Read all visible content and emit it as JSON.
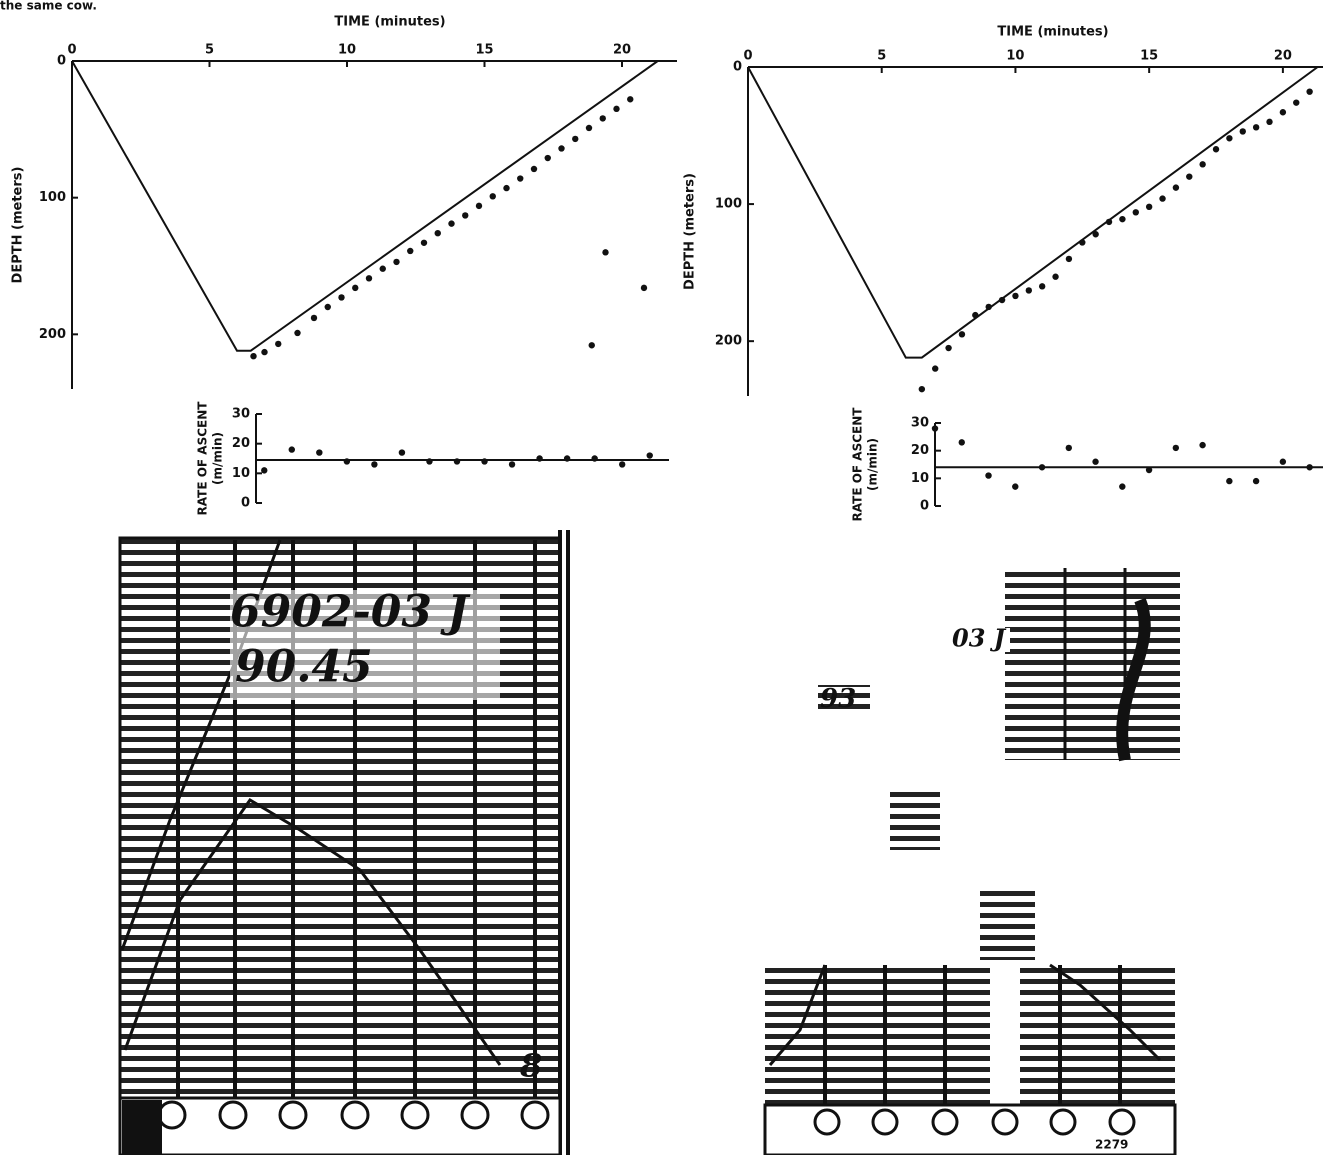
{
  "page_fragment": "the same cow.",
  "chart_data": [
    {
      "type": "scatter",
      "x_label": "TIME (minutes)",
      "y_label": "DEPTH (meters)",
      "xlim": [
        0,
        22
      ],
      "ylim": [
        240,
        0
      ],
      "xticks": [
        0,
        5,
        10,
        15,
        20
      ],
      "yticks": [
        0,
        100,
        200
      ],
      "line": {
        "x": [
          0,
          6,
          6.5,
          21.3
        ],
        "y": [
          0,
          212,
          212,
          0
        ]
      },
      "points": {
        "x": [
          6.6,
          7.0,
          7.5,
          8.2,
          8.8,
          9.3,
          9.8,
          10.3,
          10.8,
          11.3,
          11.8,
          12.3,
          12.8,
          13.3,
          13.8,
          14.3,
          14.8,
          15.3,
          15.8,
          16.3,
          16.8,
          17.3,
          17.8,
          18.3,
          18.8,
          19.3,
          19.8,
          20.3,
          19.4,
          20.8,
          18.9
        ],
        "y": [
          216,
          213,
          207,
          199,
          188,
          180,
          173,
          166,
          159,
          152,
          147,
          139,
          133,
          126,
          119,
          113,
          106,
          99,
          93,
          86,
          79,
          71,
          64,
          57,
          49,
          42,
          35,
          28,
          140,
          166,
          208
        ]
      }
    },
    {
      "type": "rate",
      "y_label": [
        "RATE OF ASCENT",
        "(m/min)"
      ],
      "xlim": [
        6.7,
        21.7
      ],
      "ylim": [
        0,
        30
      ],
      "yticks": [
        0,
        10,
        20,
        30
      ],
      "reference_y": 14.5,
      "points": {
        "x": [
          7,
          8,
          9,
          10,
          11,
          12,
          13,
          14,
          15,
          16,
          17,
          18,
          19,
          20,
          21
        ],
        "y": [
          11,
          18,
          17,
          14,
          13,
          17,
          14,
          14,
          14,
          13,
          15,
          15,
          15,
          13,
          16
        ]
      }
    },
    {
      "type": "scatter",
      "x_label": "TIME (minutes)",
      "y_label": "DEPTH (meters)",
      "xlim": [
        0,
        21.5
      ],
      "ylim": [
        240,
        0
      ],
      "xticks": [
        0,
        5,
        10,
        15,
        20
      ],
      "yticks": [
        0,
        100,
        200
      ],
      "line": {
        "x": [
          0,
          5.9,
          6.5,
          21.3
        ],
        "y": [
          0,
          212,
          212,
          0
        ]
      },
      "points": {
        "x": [
          6.5,
          7,
          7.5,
          8,
          8.5,
          9,
          9.5,
          10,
          10.5,
          11,
          11.5,
          12,
          12.5,
          13,
          13.5,
          14,
          14.5,
          15,
          15.5,
          16,
          16.5,
          17,
          17.5,
          18,
          18.5,
          19,
          19.5,
          20,
          20.5,
          21
        ],
        "y": [
          235,
          220,
          205,
          195,
          181,
          175,
          170,
          167,
          163,
          160,
          153,
          140,
          128,
          122,
          113,
          111,
          106,
          102,
          96,
          88,
          80,
          71,
          60,
          52,
          47,
          44,
          40,
          33,
          26,
          18
        ]
      }
    },
    {
      "type": "rate",
      "y_label": [
        "RATE OF ASCENT",
        "(m/min)"
      ],
      "xlim": [
        7,
        21.5
      ],
      "ylim": [
        0,
        30
      ],
      "yticks": [
        0,
        10,
        20,
        30
      ],
      "reference_y": 14,
      "points": {
        "x": [
          7,
          8,
          9,
          10,
          11,
          12,
          13,
          14,
          15,
          16,
          17,
          18,
          19,
          20,
          21
        ],
        "y": [
          28,
          23,
          11,
          7,
          14,
          21,
          16,
          7,
          13,
          21,
          22,
          9,
          9,
          16,
          14
        ]
      }
    }
  ],
  "records": {
    "left": [
      "6902-03 J",
      "90.45",
      "8"
    ],
    "right": [
      "03 J",
      "93",
      "2279"
    ]
  }
}
